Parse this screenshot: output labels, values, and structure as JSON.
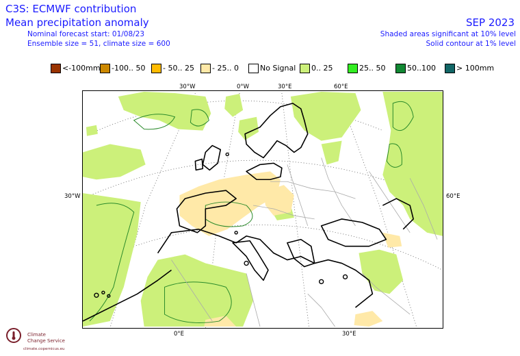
{
  "header": {
    "title": "C3S: ECMWF contribution",
    "subtitle": "Mean precipitation anomaly",
    "forecast_start": "Nominal forecast start: 01/08/23",
    "ensemble": "Ensemble size = 51, climate size = 600",
    "period": "SEP 2023",
    "shading_note": "Shaded areas significant at 10% level",
    "contour_note": "Solid contour at 1% level"
  },
  "legend": [
    {
      "label": "<-100mm",
      "color": "#993300"
    },
    {
      "label": "-100.. 50",
      "color": "#cc8800"
    },
    {
      "label": "- 50.. 25",
      "color": "#ffbb00"
    },
    {
      "label": "- 25.. 0",
      "color": "#ffe9a8"
    },
    {
      "label": "No Signal",
      "color": "#ffffff"
    },
    {
      "label": "0.. 25",
      "color": "#ccf07a"
    },
    {
      "label": "25.. 50",
      "color": "#33ee22"
    },
    {
      "label": "50..100",
      "color": "#118833"
    },
    {
      "label": "> 100mm",
      "color": "#116666"
    }
  ],
  "grid_labels": {
    "top": [
      "30°W",
      "0°W",
      "30°E",
      "60°E"
    ],
    "left": "30°W",
    "right": "60°E",
    "bottom": [
      "0°E",
      "30°E"
    ]
  },
  "logo": {
    "name_line1": "Climate",
    "name_line2": "Change Service",
    "url": "climate.copernicus.eu"
  },
  "colors": {
    "text": "#1a1aff",
    "positive_anomaly": "#ccf07a",
    "negative_anomaly": "#ffe9a8",
    "significance_contour": "#2a8a2a",
    "coastline": "#000000",
    "borders": "#aaaaaa"
  }
}
